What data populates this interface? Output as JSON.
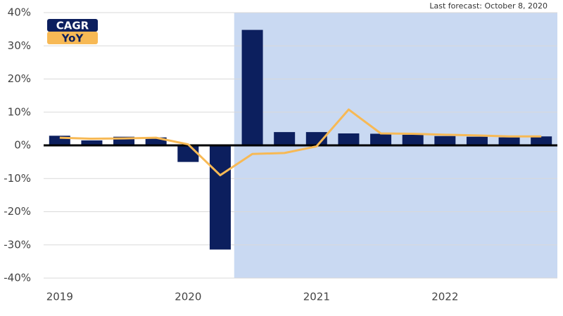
{
  "chart_data": {
    "type": "bar-line",
    "annotation": "Last forecast: October 8, 2020",
    "categories": [
      "2019",
      null,
      null,
      null,
      "2020",
      null,
      null,
      null,
      "2021",
      null,
      null,
      null,
      "2022",
      null,
      null,
      null
    ],
    "series": [
      {
        "name": "CAGR",
        "type": "bar",
        "color": "#0c1f5e",
        "values": [
          2.9,
          1.5,
          2.6,
          2.4,
          -5.0,
          -31.4,
          34.8,
          4.0,
          4.0,
          3.6,
          3.5,
          3.2,
          2.8,
          2.6,
          2.4,
          2.7
        ]
      },
      {
        "name": "YoY",
        "type": "line",
        "color": "#f7b955",
        "values": [
          2.3,
          2.0,
          2.1,
          2.3,
          0.3,
          -9.0,
          -2.6,
          -2.3,
          -0.3,
          10.8,
          3.6,
          3.5,
          3.2,
          3.0,
          2.7,
          2.7
        ]
      }
    ],
    "ylim": [
      -40,
      40
    ],
    "yticks": [
      {
        "value": -40,
        "label": "-40%"
      },
      {
        "value": -30,
        "label": "-30%"
      },
      {
        "value": -20,
        "label": "-20%"
      },
      {
        "value": -10,
        "label": "-10%"
      },
      {
        "value": 0,
        "label": "0%"
      },
      {
        "value": 10,
        "label": "10%"
      },
      {
        "value": 20,
        "label": "20%"
      },
      {
        "value": 30,
        "label": "30%"
      },
      {
        "value": 40,
        "label": "40%"
      }
    ],
    "grid": true
  }
}
